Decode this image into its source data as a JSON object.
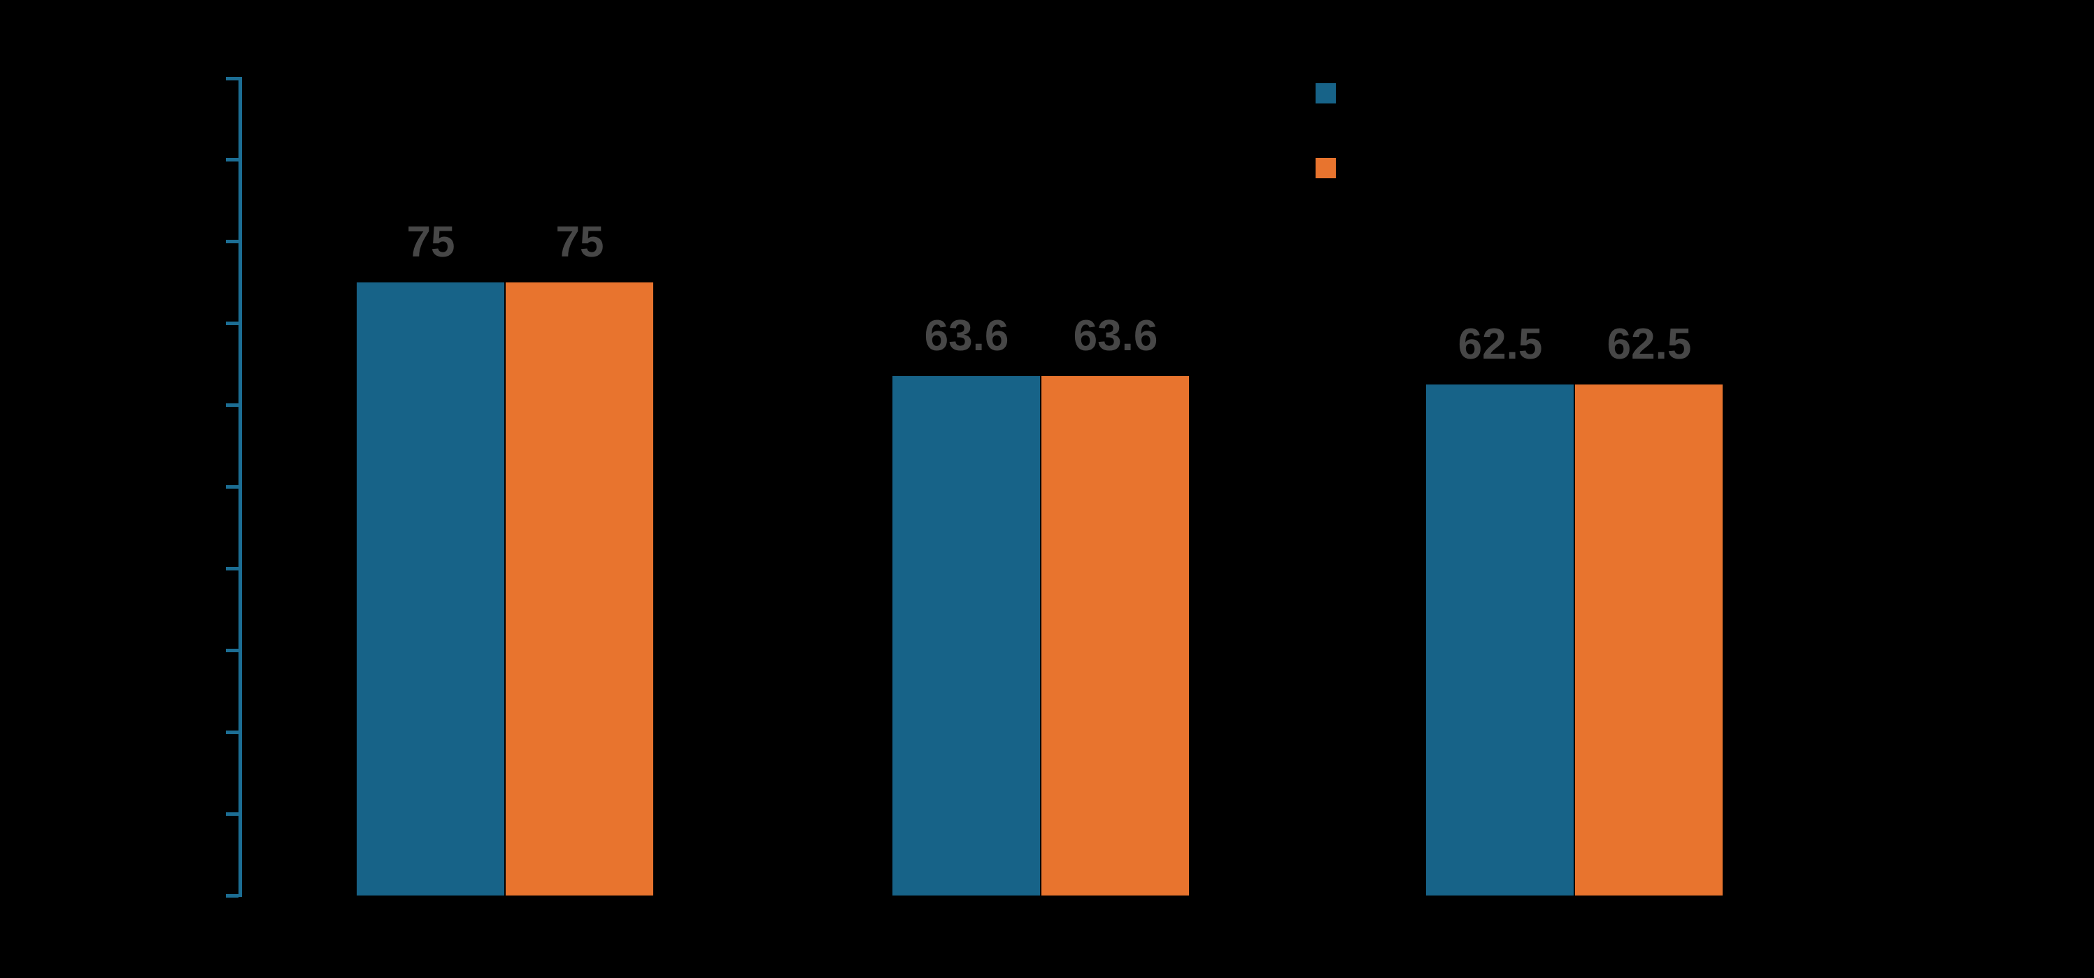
{
  "chart_data": {
    "type": "bar",
    "title": "",
    "xlabel": "",
    "ylabel": "",
    "categories": [
      "",
      "",
      ""
    ],
    "series": [
      {
        "name": "",
        "color_key": "series1",
        "values": [
          75,
          63.6,
          62.5
        ],
        "value_labels": [
          "75",
          "63.6",
          "62.5"
        ]
      },
      {
        "name": "",
        "color_key": "series2",
        "values": [
          75,
          63.6,
          62.5
        ],
        "value_labels": [
          "75",
          "63.6",
          "62.5"
        ]
      }
    ],
    "ylim": [
      0,
      100
    ],
    "yticks": [
      0,
      10,
      20,
      30,
      40,
      50,
      60,
      70,
      80,
      90,
      100
    ],
    "ytick_labels_visible": false,
    "xtick_labels_visible": false,
    "grid": false,
    "legend_position": "top-right",
    "legend": [
      {
        "label": "",
        "color_key": "series1"
      },
      {
        "label": "",
        "color_key": "series2"
      }
    ]
  },
  "colors": {
    "background": "#000000",
    "series1": "#176388",
    "series2": "#E8742E",
    "axis": "#1C6E94",
    "value_label": "#474747"
  }
}
